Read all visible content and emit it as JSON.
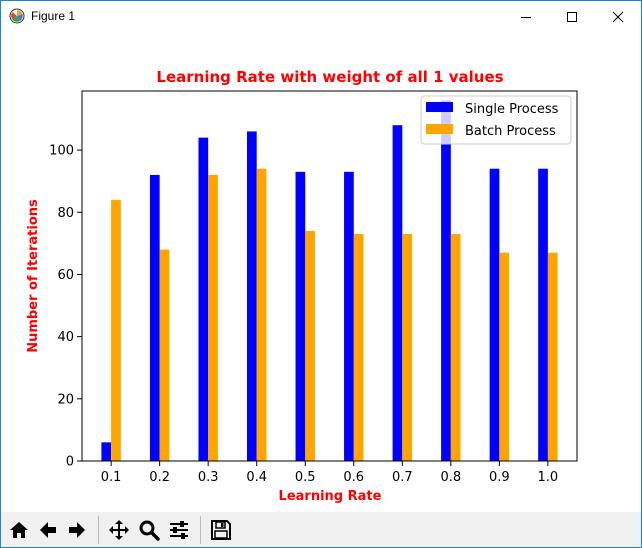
{
  "window": {
    "title": "Figure 1",
    "icons": {
      "app": "matplotlib-app-icon",
      "minimize": "minimize-icon",
      "maximize": "maximize-icon",
      "close": "close-icon"
    }
  },
  "toolbar": {
    "buttons": [
      {
        "name": "home",
        "icon": "home-icon"
      },
      {
        "name": "back",
        "icon": "arrow-left-icon"
      },
      {
        "name": "forward",
        "icon": "arrow-right-icon"
      },
      {
        "name": "pan",
        "icon": "move-icon"
      },
      {
        "name": "zoom",
        "icon": "magnifier-icon"
      },
      {
        "name": "configure-subplots",
        "icon": "sliders-icon"
      },
      {
        "name": "save",
        "icon": "floppy-disk-icon"
      }
    ]
  },
  "chart_data": {
    "type": "bar",
    "title": "Learning Rate with weight of all 1 values",
    "xlabel": "Learning Rate",
    "ylabel": "Number of Iterations",
    "title_color": "#ff0000",
    "label_color": "#ff0000",
    "categories": [
      "0.1",
      "0.2",
      "0.3",
      "0.4",
      "0.5",
      "0.6",
      "0.7",
      "0.8",
      "0.9",
      "1.0"
    ],
    "series": [
      {
        "name": "Single Process",
        "color": "#0000ff",
        "values": [
          6,
          92,
          104,
          106,
          93,
          93,
          108,
          116,
          94,
          94
        ]
      },
      {
        "name": "Batch Process",
        "color": "#ffa500",
        "values": [
          84,
          68,
          92,
          94,
          74,
          73,
          73,
          73,
          67,
          67
        ]
      }
    ],
    "ylim": [
      0,
      119
    ],
    "yticks": [
      "0",
      "20",
      "40",
      "60",
      "80",
      "100"
    ],
    "legend_position": "upper right",
    "grid": false
  }
}
